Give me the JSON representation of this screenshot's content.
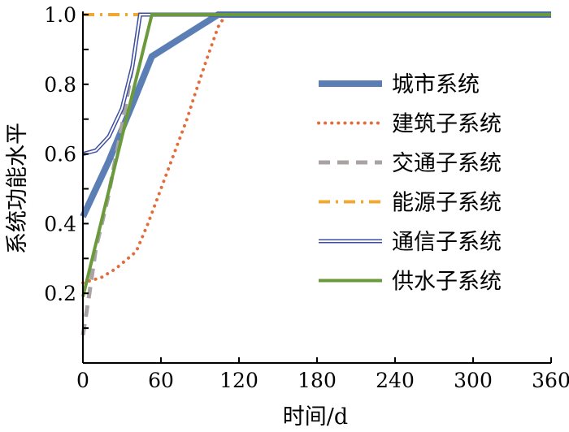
{
  "chart_data": {
    "type": "line",
    "title": "",
    "xlabel": "时间/d",
    "ylabel": "系统功能水平",
    "xlim": [
      0,
      360
    ],
    "ylim": [
      0,
      1.0
    ],
    "xticks": [
      0,
      60,
      120,
      180,
      240,
      300,
      360
    ],
    "xtick_labels": [
      "0",
      "60",
      "120",
      "180",
      "240",
      "300",
      "360"
    ],
    "yticks": [
      0.2,
      0.4,
      0.6,
      0.8,
      1.0
    ],
    "ytick_labels": [
      "0.2",
      "0.4",
      "0.6",
      "0.8",
      "1.0"
    ],
    "legend_position": "right",
    "series": [
      {
        "name": "城市系统",
        "color": "#5b7fb5",
        "style": "thick",
        "points": [
          [
            0,
            0.42
          ],
          [
            20,
            0.58
          ],
          [
            40,
            0.76
          ],
          [
            53,
            0.88
          ],
          [
            104,
            1.0
          ],
          [
            360,
            1.0
          ]
        ]
      },
      {
        "name": "建筑子系统",
        "color": "#e26d3c",
        "style": "dotted",
        "points": [
          [
            0,
            0.23
          ],
          [
            14,
            0.245
          ],
          [
            25,
            0.27
          ],
          [
            41,
            0.32
          ],
          [
            50,
            0.4
          ],
          [
            60,
            0.5
          ],
          [
            70,
            0.6
          ],
          [
            80,
            0.7
          ],
          [
            86,
            0.77
          ],
          [
            95,
            0.87
          ],
          [
            104,
            0.965
          ],
          [
            110,
            1.0
          ],
          [
            360,
            1.0
          ]
        ]
      },
      {
        "name": "交通子系统",
        "color": "#aaa3a3",
        "style": "dashed",
        "points": [
          [
            0,
            0.08
          ],
          [
            5,
            0.2
          ],
          [
            10,
            0.33
          ],
          [
            19,
            0.47
          ],
          [
            30,
            0.68
          ],
          [
            38,
            0.85
          ],
          [
            44,
            1.0
          ],
          [
            360,
            1.0
          ]
        ]
      },
      {
        "name": "能源子系统",
        "color": "#f0a830",
        "style": "dashdot",
        "points": [
          [
            0,
            1.0
          ],
          [
            360,
            1.0
          ]
        ]
      },
      {
        "name": "通信子系统",
        "color": "#3d4fa0",
        "style": "double",
        "points": [
          [
            0,
            0.6
          ],
          [
            10,
            0.61
          ],
          [
            20,
            0.65
          ],
          [
            30,
            0.73
          ],
          [
            38,
            0.85
          ],
          [
            44,
            1.0
          ],
          [
            360,
            1.0
          ]
        ]
      },
      {
        "name": "供水子系统",
        "color": "#6a9a3c",
        "style": "solid",
        "points": [
          [
            0,
            0.19
          ],
          [
            53,
            1.0
          ],
          [
            360,
            1.0
          ]
        ]
      }
    ]
  }
}
